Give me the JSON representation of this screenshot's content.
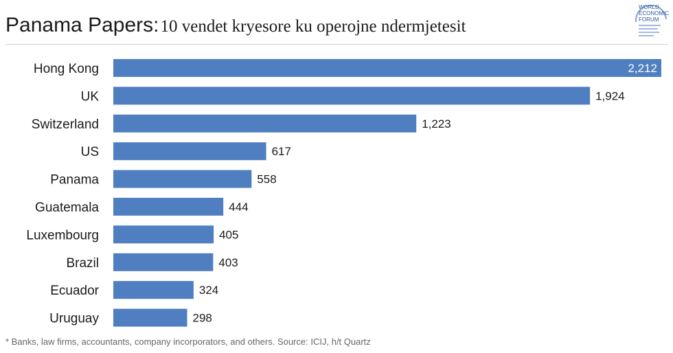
{
  "header": {
    "title_main": "Panama Papers:",
    "title_sub": "10 vendet kryesore ku operojne ndermjetesit"
  },
  "logo": {
    "line1": "WORLD",
    "line2": "ECONOMIC",
    "line3": "FORUM",
    "tagline": ""
  },
  "colors": {
    "bar": "#4f7fc0",
    "text": "#1a1a1a",
    "footnote": "#666666"
  },
  "chart_data": {
    "type": "bar",
    "orientation": "horizontal",
    "title": "Panama Papers: 10 vendet kryesore ku operojne ndermjetesit",
    "categories": [
      "Hong Kong",
      "UK",
      "Switzerland",
      "US",
      "Panama",
      "Guatemala",
      "Luxembourg",
      "Brazil",
      "Ecuador",
      "Uruguay"
    ],
    "values": [
      2212,
      1924,
      1223,
      617,
      558,
      444,
      405,
      403,
      324,
      298
    ],
    "value_labels": [
      "2,212",
      "1,924",
      "1,223",
      "617",
      "558",
      "444",
      "405",
      "403",
      "324",
      "298"
    ],
    "xlim": [
      0,
      2212
    ],
    "xlabel": "",
    "ylabel": "",
    "grid": false,
    "legend": "none"
  },
  "footnote": "* Banks, law firms, accountants, company incorporators, and others. Source: ICIJ, h/t Quartz"
}
